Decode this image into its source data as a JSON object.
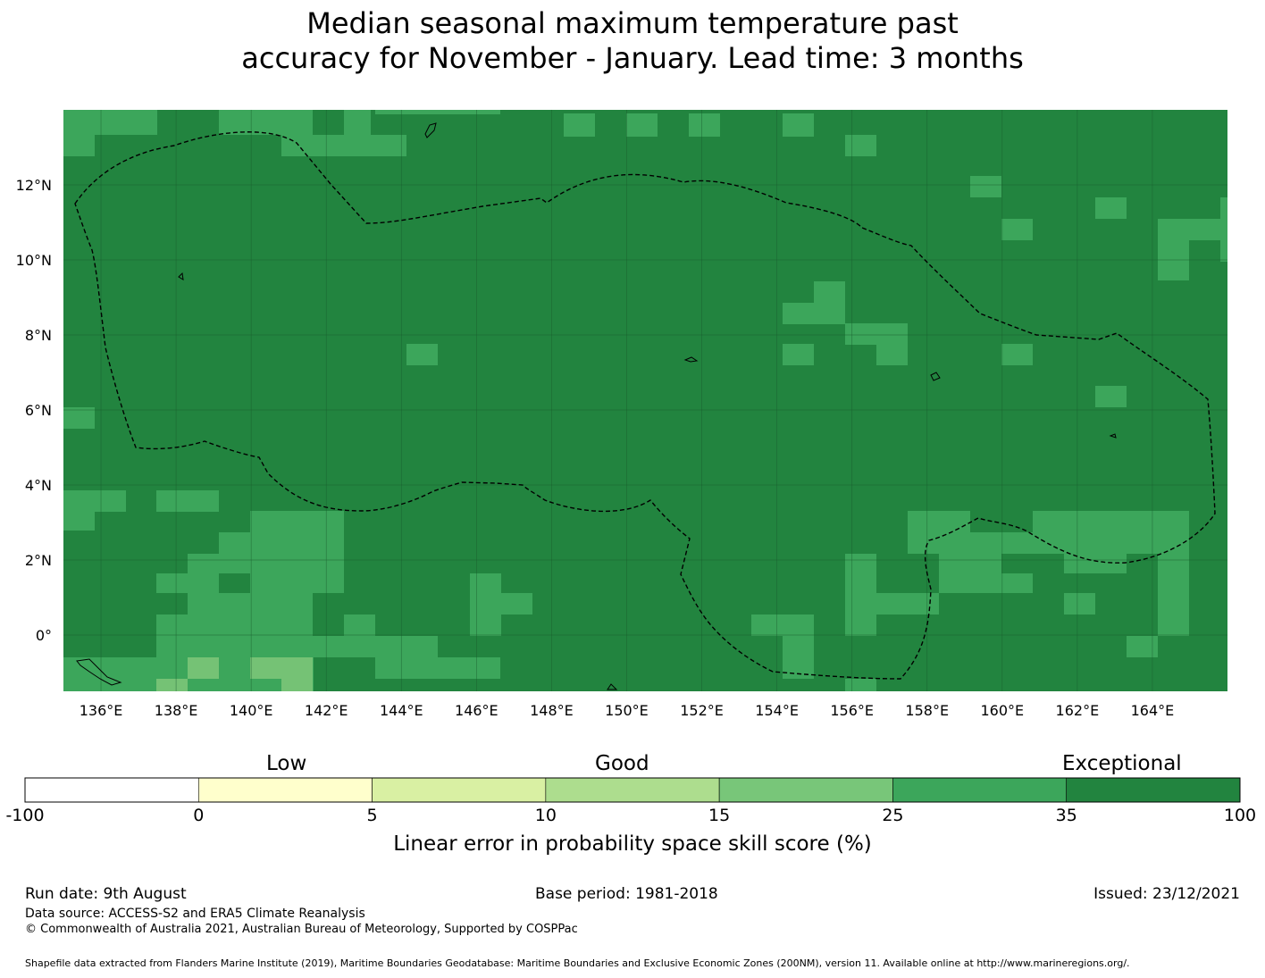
{
  "title": {
    "line1": "Median seasonal maximum temperature past",
    "line2": "accuracy for November - January. Lead time: 3 months"
  },
  "map": {
    "lon_range": [
      135,
      166
    ],
    "lat_range": [
      -1.5,
      14
    ],
    "lon_tick_labels": [
      "136°E",
      "138°E",
      "140°E",
      "142°E",
      "144°E",
      "146°E",
      "148°E",
      "150°E",
      "152°E",
      "154°E",
      "156°E",
      "158°E",
      "160°E",
      "162°E",
      "164°E"
    ],
    "lat_tick_labels": [
      "12°N",
      "10°N",
      "8°N",
      "6°N",
      "4°N",
      "2°N",
      "0°"
    ],
    "background_class": "35 to 100",
    "grid_lines": true,
    "boundary_style": "dashed",
    "colors": {
      "exceptional": "#22843f",
      "good_high": "#3ca65b",
      "good_mid": "#75c275",
      "gridline": "#1a5c2e"
    }
  },
  "colorbar": {
    "category_labels": {
      "low": "Low",
      "good": "Good",
      "exceptional": "Exceptional"
    },
    "ticks": [
      "-100",
      "0",
      "5",
      "10",
      "15",
      "25",
      "35",
      "100"
    ],
    "colors": [
      "#ffffff",
      "#ffffcc",
      "#d9f0a3",
      "#addd8e",
      "#78c679",
      "#3ca65b",
      "#22843f"
    ],
    "label": "Linear error in probability space skill score (%)"
  },
  "footer": {
    "run_date": "Run date: 9th August",
    "base_period": "Base period: 1981-2018",
    "issued": "Issued: 23/12/2021",
    "data_source": "Data source: ACCESS-S2 and ERA5 Climate Reanalysis",
    "copyright": "© Commonwealth of Australia 2021, Australian Bureau of Meteorology, Supported by COSPPac",
    "shapefile": "Shapefile data extracted from Flanders Marine Institute (2019), Maritime Boundaries Geodatabase: Maritime Boundaries and Exclusive Economic Zones (200NM), version 11. Available online at http://www.marineregions.org/."
  }
}
